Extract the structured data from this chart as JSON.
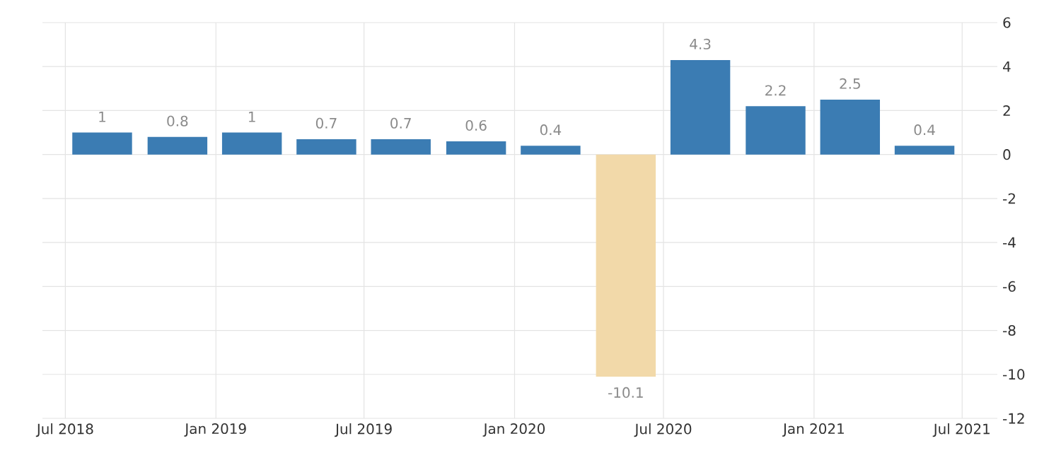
{
  "chart_data": {
    "type": "bar",
    "x": [
      "2018-08-15",
      "2018-11-15",
      "2019-02-14",
      "2019-05-16",
      "2019-08-15",
      "2019-11-15",
      "2020-02-14",
      "2020-05-16",
      "2020-08-15",
      "2020-11-15",
      "2021-02-14",
      "2021-05-16"
    ],
    "values": [
      1,
      0.8,
      1,
      0.7,
      0.7,
      0.6,
      0.4,
      -10.1,
      4.3,
      2.2,
      2.5,
      0.4
    ],
    "colors": [
      "#3b7cb3",
      "#3b7cb3",
      "#3b7cb3",
      "#3b7cb3",
      "#3b7cb3",
      "#3b7cb3",
      "#3b7cb3",
      "#f2d9a9",
      "#3b7cb3",
      "#3b7cb3",
      "#3b7cb3",
      "#3b7cb3"
    ],
    "data_labels": true,
    "xlim": [
      "2018-06-03",
      "2021-08-13"
    ],
    "xticks": [
      {
        "value": "2018-07-01",
        "label": "Jul 2018"
      },
      {
        "value": "2019-01-01",
        "label": "Jan 2019"
      },
      {
        "value": "2019-07-01",
        "label": "Jul 2019"
      },
      {
        "value": "2020-01-01",
        "label": "Jan 2020"
      },
      {
        "value": "2020-07-01",
        "label": "Jul 2020"
      },
      {
        "value": "2021-01-01",
        "label": "Jan 2021"
      },
      {
        "value": "2021-07-01",
        "label": "Jul 2021"
      }
    ],
    "ylim": [
      -12,
      6
    ],
    "yticks": [
      -12,
      -10,
      -8,
      -6,
      -4,
      -2,
      0,
      2,
      4,
      6
    ],
    "grid": true
  }
}
